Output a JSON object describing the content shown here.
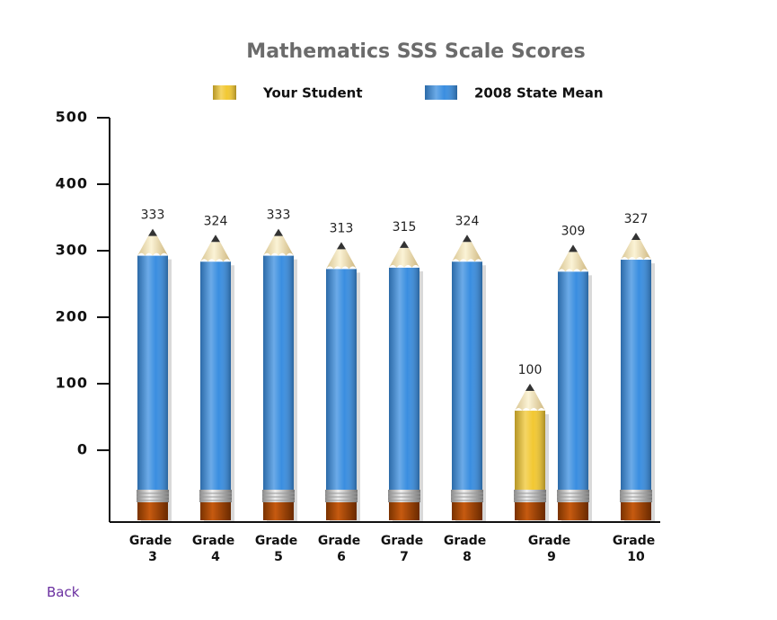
{
  "chart_data": {
    "type": "bar",
    "title": "Mathematics SSS Scale Scores",
    "categories": [
      "Grade 3",
      "Grade 4",
      "Grade 5",
      "Grade 6",
      "Grade 7",
      "Grade 8",
      "Grade 9",
      "Grade 10"
    ],
    "series": [
      {
        "name": "Your Student",
        "color": "#f2c832",
        "values": [
          null,
          null,
          null,
          null,
          null,
          null,
          100,
          null
        ]
      },
      {
        "name": "2008 State Mean",
        "color": "#3a8ee0",
        "values": [
          333,
          324,
          333,
          313,
          315,
          324,
          309,
          327
        ]
      }
    ],
    "ylim": [
      -108,
      500
    ],
    "yticks": [
      0,
      100,
      200,
      300,
      400,
      500
    ],
    "legend": "top"
  },
  "links": {
    "back": "Back"
  }
}
